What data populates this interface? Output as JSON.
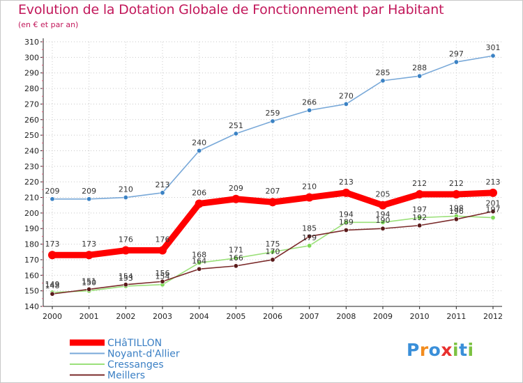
{
  "header": {
    "title": "Evolution de la Dotation Globale de Fonctionnement par Habitant",
    "subtitle": "(en € et par an)"
  },
  "chart_data": {
    "type": "line",
    "title": "Evolution de la Dotation Globale de Fonctionnement par Habitant",
    "subtitle": "(en € et par an)",
    "xlabel": "",
    "ylabel": "",
    "x": [
      2000,
      2001,
      2002,
      2003,
      2004,
      2005,
      2006,
      2007,
      2008,
      2009,
      2010,
      2011,
      2012
    ],
    "ylim": [
      140,
      310
    ],
    "yticks": [
      140,
      150,
      160,
      170,
      180,
      190,
      200,
      210,
      220,
      230,
      240,
      250,
      260,
      270,
      280,
      290,
      300,
      310
    ],
    "grid": true,
    "legend_position": "bottom-left",
    "series": [
      {
        "name": "Noyant-d'Allier",
        "color": "#78a8d8",
        "marker_color": "#3b82c4",
        "emphasis": false,
        "values": [
          209,
          209,
          210,
          213,
          240,
          251,
          259,
          266,
          270,
          285,
          288,
          297,
          301
        ]
      },
      {
        "name": "Cressanges",
        "color": "#9be07a",
        "marker_color": "#7ed957",
        "emphasis": false,
        "values": [
          149,
          150,
          153,
          154,
          168,
          171,
          175,
          179,
          194,
          194,
          197,
          198,
          197
        ]
      },
      {
        "name": "Meillers",
        "color": "#7a2a2a",
        "marker_color": "#5a1a1a",
        "emphasis": false,
        "values": [
          148,
          151,
          154,
          156,
          164,
          166,
          170,
          185,
          189,
          190,
          192,
          196,
          201
        ]
      },
      {
        "name": "CHâTILLON",
        "color": "#ff0000",
        "marker_color": "#ff0000",
        "emphasis": true,
        "values": [
          173,
          173,
          176,
          176,
          206,
          209,
          207,
          210,
          213,
          205,
          212,
          212,
          213
        ]
      }
    ],
    "legend_order": [
      "CHâTILLON",
      "Noyant-d'Allier",
      "Cressanges",
      "Meillers"
    ]
  },
  "logo": {
    "text": "Proxiti",
    "letter_colors": [
      "#3a8fd9",
      "#f28c1e",
      "#3a8fd9",
      "#e8302e",
      "#7cc242",
      "#3a8fd9",
      "#7cc242"
    ]
  }
}
